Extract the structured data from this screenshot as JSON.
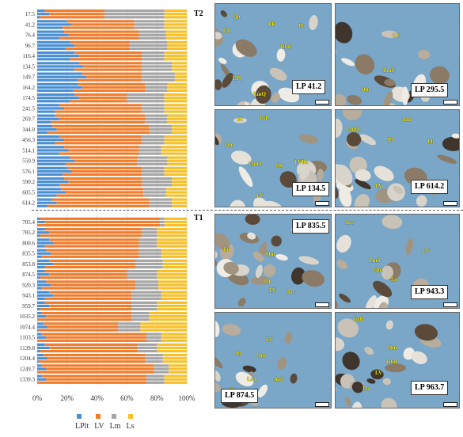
{
  "legend": [
    {
      "label": "LPlt",
      "color": "#4a8fd4"
    },
    {
      "label": "LV",
      "color": "#ef7d2d"
    },
    {
      "label": "Lm",
      "color": "#a5a5a5"
    },
    {
      "label": "Ls",
      "color": "#f7bf2a"
    }
  ],
  "trend_labels": {
    "upper": "T2",
    "lower": "T1"
  },
  "chart_data": {
    "type": "bar",
    "orientation": "horizontal-stacked-100",
    "categories": [
      "17.5",
      "41.2",
      "76.4",
      "96.7",
      "116.4",
      "134.5",
      "149.7",
      "164.2",
      "174.5",
      "241.5",
      "269.7",
      "344.0",
      "456.3",
      "514.1",
      "550.9",
      "576.1",
      "590.2",
      "605.5",
      "614.2",
      "705.4",
      "785.2",
      "800.6",
      "835.5",
      "853.8",
      "874.5",
      "920.3",
      "943.1",
      "959.7",
      "1035.2",
      "1074.4",
      "1103.5",
      "1139.8",
      "1204.4",
      "1249.7",
      "1339.3"
    ],
    "x_ticks": [
      "0%",
      "20%",
      "40%",
      "60%",
      "80%",
      "100%"
    ],
    "xlim": [
      0,
      100
    ],
    "grid": true,
    "legend_position": "bottom",
    "series": [
      {
        "name": "LPlt",
        "color": "#4a8fd4",
        "values": [
          5,
          20,
          18,
          22,
          25,
          28,
          30,
          27,
          25,
          15,
          12,
          10,
          15,
          18,
          22,
          20,
          18,
          16,
          10,
          2,
          5,
          8,
          6,
          8,
          5,
          6,
          8,
          5,
          3,
          4,
          3,
          5,
          4,
          3,
          3
        ]
      },
      {
        "name": "LV",
        "color": "#ef7d2d",
        "values": [
          40,
          45,
          50,
          40,
          45,
          42,
          40,
          45,
          35,
          55,
          60,
          65,
          55,
          50,
          45,
          50,
          52,
          55,
          65,
          80,
          65,
          60,
          62,
          58,
          55,
          60,
          55,
          58,
          60,
          50,
          70,
          62,
          68,
          75,
          70
        ]
      },
      {
        "name": "Lm",
        "color": "#a5a5a5",
        "values": [
          40,
          20,
          18,
          25,
          15,
          20,
          22,
          15,
          25,
          15,
          15,
          15,
          15,
          15,
          20,
          15,
          20,
          15,
          15,
          3,
          10,
          12,
          15,
          18,
          20,
          15,
          20,
          17,
          12,
          15,
          10,
          13,
          12,
          10,
          12
        ]
      },
      {
        "name": "Ls",
        "color": "#f7bf2a",
        "values": [
          15,
          15,
          14,
          13,
          15,
          10,
          8,
          13,
          15,
          15,
          13,
          10,
          15,
          17,
          13,
          15,
          10,
          14,
          10,
          15,
          20,
          20,
          17,
          16,
          20,
          19,
          17,
          20,
          25,
          31,
          17,
          20,
          16,
          12,
          15
        ]
      }
    ]
  },
  "photos": [
    {
      "id": "lp-41-2",
      "label": "LP 41.2",
      "minerals": [
        "Qp",
        "FK",
        "Pl",
        "Ch",
        "Hbd",
        "LPt",
        "LmQ"
      ]
    },
    {
      "id": "lp-295-5",
      "label": "LP 295.5",
      "minerals": [
        "LV",
        "LmS",
        "Qm"
      ]
    },
    {
      "id": "lp-134-5",
      "label": "LP 134.5",
      "minerals": [
        "Pl",
        "LsL",
        "Qm",
        "Ch",
        "LmQ",
        "LVRe",
        "LV"
      ]
    },
    {
      "id": "lp-614-2",
      "label": "LP 614.2",
      "minerals": [
        "LmQ",
        "Anf",
        "Pl",
        "Lb",
        "LV"
      ]
    },
    {
      "id": "lp-835-5",
      "label": "LP 835.5",
      "minerals": [
        "Lo",
        "Qm",
        "Qp",
        "LV",
        "Arc"
      ]
    },
    {
      "id": "lp-943-3",
      "label": "LP 943.3",
      "minerals": [
        "Arc",
        "LV",
        "LmS",
        "Qm",
        "Lo"
      ]
    },
    {
      "id": "lp-874-5",
      "label": "LP 874.5",
      "minerals": [
        "LV",
        "Pl",
        "Qm",
        "LsA",
        "Anf",
        "Qp"
      ]
    },
    {
      "id": "lp-963-7",
      "label": "LP 963.7",
      "minerals": [
        "GrR",
        "Qm",
        "Hbd",
        "LV",
        "Lo"
      ]
    }
  ]
}
